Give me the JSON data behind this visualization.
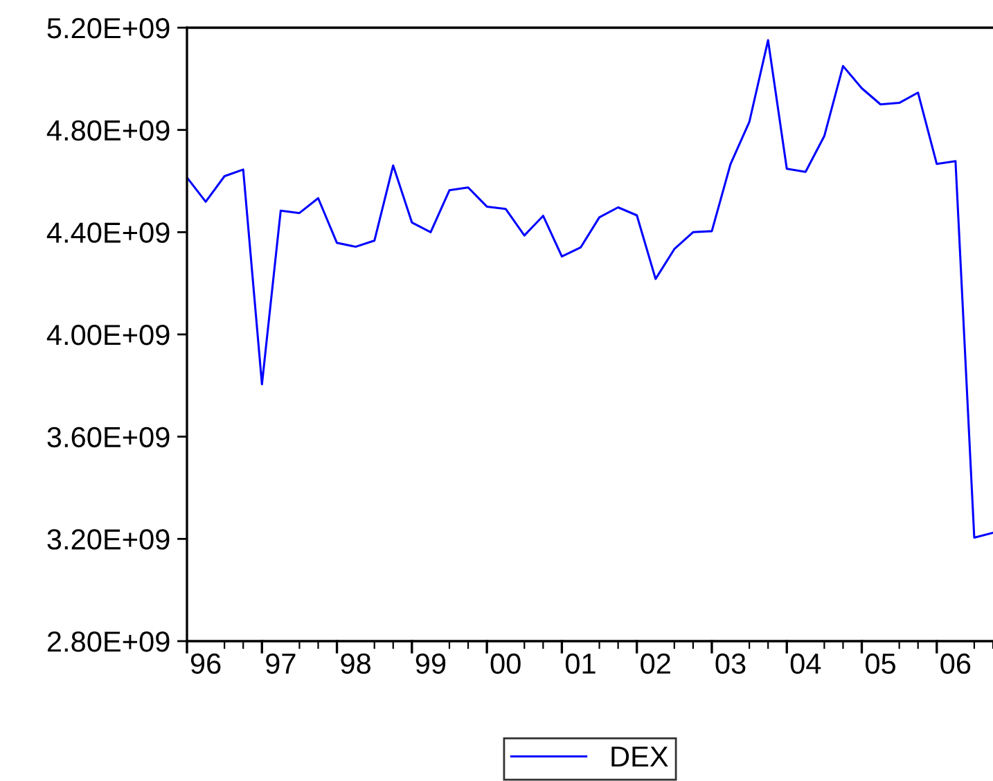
{
  "chart_data": {
    "type": "line",
    "legend": "bottom",
    "grid": false,
    "marker": "none",
    "line_style": "solid",
    "categories": [
      null,
      "96",
      null,
      null,
      null,
      "97",
      null,
      null,
      null,
      "98",
      null,
      null,
      null,
      "99",
      null,
      null,
      null,
      "00",
      null,
      null,
      null,
      "01",
      null,
      null,
      null,
      "02",
      null,
      null,
      null,
      "03",
      null,
      null,
      null,
      "04",
      null,
      null,
      null,
      "05",
      null,
      null,
      null,
      "06",
      null,
      null
    ],
    "series": [
      {
        "name": "DEX",
        "color": "#0000ff",
        "values": [
          4614000000,
          4519000000,
          4619000000,
          4645000000,
          3805000000,
          4484000000,
          4475000000,
          4533000000,
          4358000000,
          4343000000,
          4367000000,
          4661000000,
          4438000000,
          4400000000,
          4564000000,
          4575000000,
          4500000000,
          4491000000,
          4387000000,
          4464000000,
          4305000000,
          4340000000,
          4458000000,
          4497000000,
          4466000000,
          4217000000,
          4334000000,
          4400000000,
          4404000000,
          4667000000,
          4831000000,
          5151000000,
          4648000000,
          4636000000,
          4776000000,
          5050000000,
          4963000000,
          4900000000,
          4906000000,
          4946000000,
          4667000000,
          4678000000,
          3205000000,
          3224000000
        ]
      }
    ],
    "ylim": [
      2800000000,
      5200000000
    ],
    "yticks": [
      {
        "value": 2800000000,
        "label": "2.80E+09"
      },
      {
        "value": 3200000000,
        "label": "3.20E+09"
      },
      {
        "value": 3600000000,
        "label": "3.60E+09"
      },
      {
        "value": 4000000000,
        "label": "4.00E+09"
      },
      {
        "value": 4400000000,
        "label": "4.40E+09"
      },
      {
        "value": 4800000000,
        "label": "4.80E+09"
      },
      {
        "value": 5200000000,
        "label": "5.20E+09"
      }
    ]
  }
}
